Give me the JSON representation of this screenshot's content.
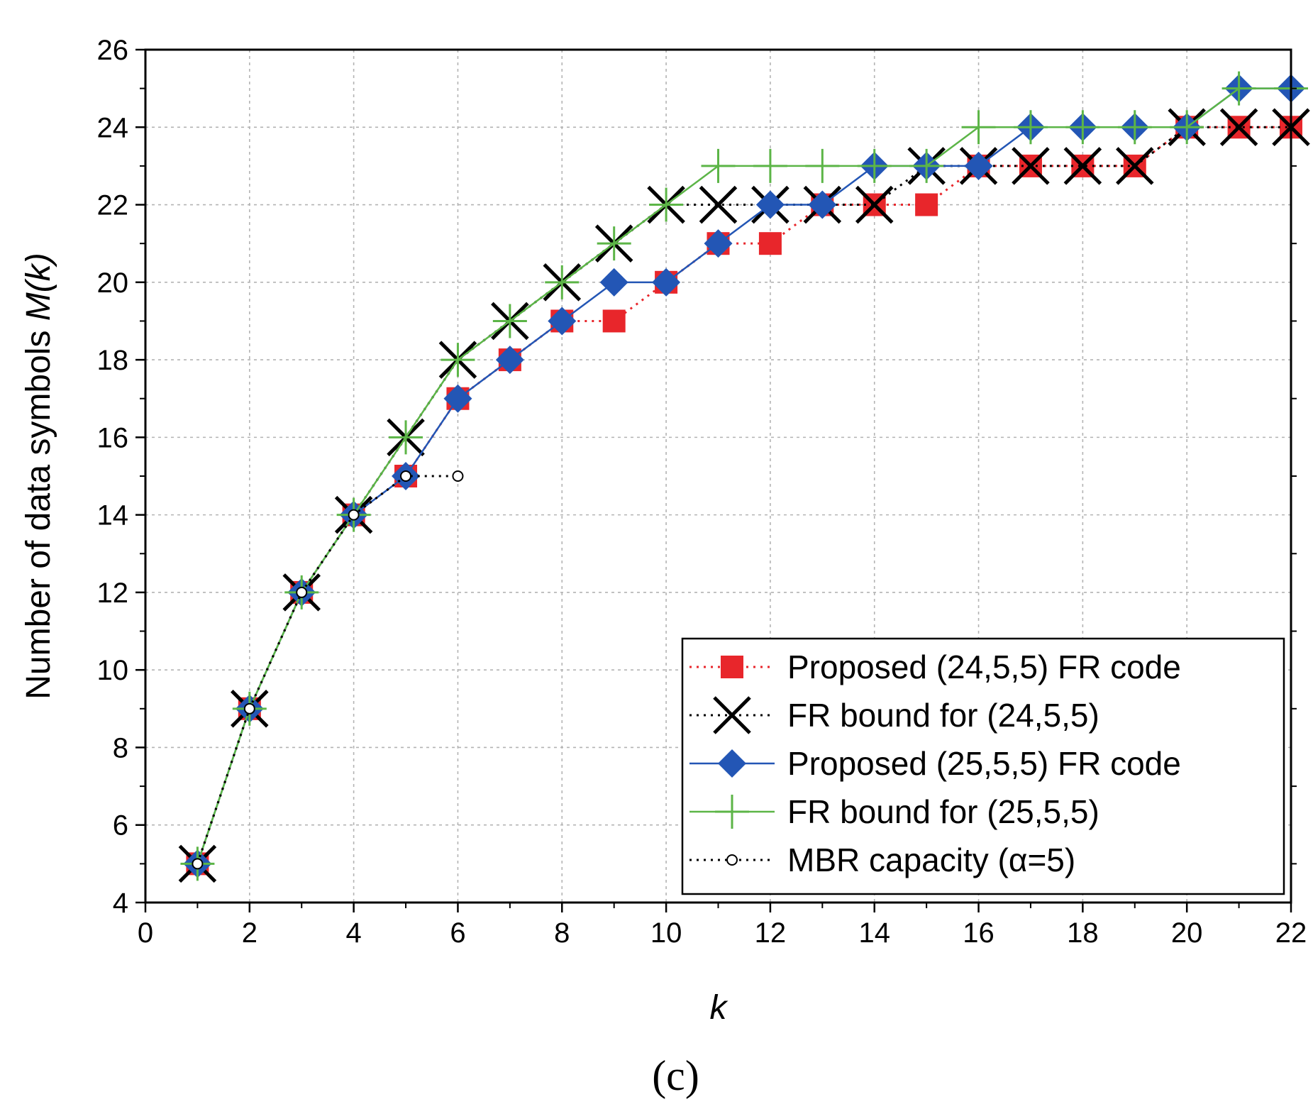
{
  "chart_data": {
    "type": "line",
    "xlabel": "k",
    "ylabel_text": "Number of data symbols ",
    "ylabel_math": "M(k)",
    "panel_label": "(c)",
    "xlim": [
      0,
      22
    ],
    "ylim": [
      4,
      26
    ],
    "x_ticks": [
      0,
      2,
      4,
      6,
      8,
      10,
      12,
      14,
      16,
      18,
      20,
      22
    ],
    "y_ticks": [
      4,
      6,
      8,
      10,
      12,
      14,
      16,
      18,
      20,
      22,
      24,
      26
    ],
    "grid": true,
    "legend_position": "bottom-right",
    "series": [
      {
        "name": "Proposed (24,5,5) FR code",
        "color": "#e8262b",
        "line_style": "dotted",
        "marker": "square",
        "x": [
          1,
          2,
          3,
          4,
          5,
          6,
          7,
          8,
          9,
          10,
          11,
          12,
          13,
          14,
          15,
          16,
          17,
          18,
          19,
          20,
          21,
          22
        ],
        "y": [
          5,
          9,
          12,
          14,
          15,
          17,
          18,
          19,
          19,
          20,
          21,
          21,
          22,
          22,
          22,
          23,
          23,
          23,
          23,
          24,
          24,
          24
        ]
      },
      {
        "name": "FR bound for (24,5,5)",
        "color": "#000000",
        "line_style": "dotted",
        "marker": "x",
        "x": [
          1,
          2,
          3,
          4,
          5,
          6,
          7,
          8,
          9,
          10,
          11,
          12,
          13,
          14,
          15,
          16,
          17,
          18,
          19,
          20,
          21,
          22
        ],
        "y": [
          5,
          9,
          12,
          14,
          16,
          18,
          19,
          20,
          21,
          22,
          22,
          22,
          22,
          22,
          23,
          23,
          23,
          23,
          23,
          24,
          24,
          24
        ]
      },
      {
        "name": "Proposed (25,5,5) FR code",
        "color": "#2356b5",
        "line_style": "solid",
        "marker": "diamond",
        "x": [
          1,
          2,
          3,
          4,
          5,
          6,
          7,
          8,
          9,
          10,
          11,
          12,
          13,
          14,
          15,
          16,
          17,
          18,
          19,
          20,
          21,
          22
        ],
        "y": [
          5,
          9,
          12,
          14,
          15,
          17,
          18,
          19,
          20,
          20,
          21,
          22,
          22,
          23,
          23,
          23,
          24,
          24,
          24,
          24,
          25,
          25
        ]
      },
      {
        "name": "FR bound for (25,5,5)",
        "color": "#5cb547",
        "line_style": "solid",
        "marker": "plus",
        "x": [
          1,
          2,
          3,
          4,
          5,
          6,
          7,
          8,
          9,
          10,
          11,
          12,
          13,
          14,
          15,
          16,
          17,
          18,
          19,
          20,
          21,
          22
        ],
        "y": [
          5,
          9,
          12,
          14,
          16,
          18,
          19,
          20,
          21,
          22,
          23,
          23,
          23,
          23,
          23,
          24,
          24,
          24,
          24,
          24,
          25,
          25
        ]
      },
      {
        "name": "MBR capacity (α=5)",
        "color": "#000000",
        "line_style": "dotted",
        "marker": "circle",
        "x": [
          1,
          2,
          3,
          4,
          5,
          6
        ],
        "y": [
          5,
          9,
          12,
          14,
          15,
          15
        ]
      }
    ]
  }
}
